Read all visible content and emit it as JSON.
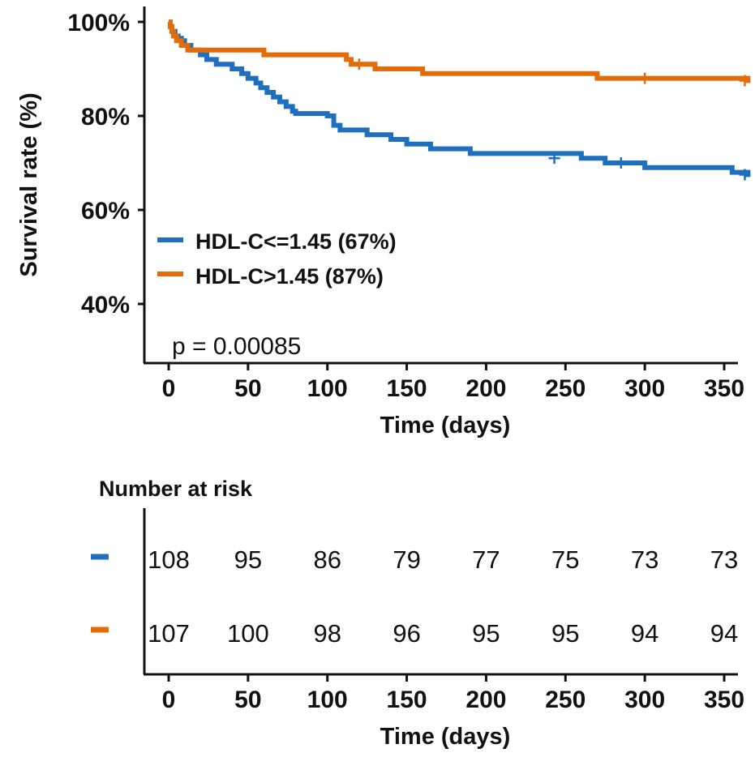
{
  "chart_data": {
    "type": "line",
    "subtype": "kaplan-meier",
    "xlabel": "Time (days)",
    "ylabel": "Survival rate (%)",
    "xlim": [
      0,
      370
    ],
    "ylim": [
      25,
      100
    ],
    "x_ticks": [
      0,
      50,
      100,
      150,
      200,
      250,
      300,
      350
    ],
    "x_tick_labels": [
      "0",
      "50",
      "100",
      "150",
      "200",
      "250",
      "300",
      "350"
    ],
    "y_ticks": [
      40,
      60,
      80,
      100
    ],
    "y_tick_labels": [
      "40%",
      "60%",
      "80%",
      "100%"
    ],
    "p_value_text": "p = 0.00085",
    "legend_position": "center-left",
    "series": [
      {
        "name": "HDL-C<=1.45 (67%)",
        "color": "#1f6fbf",
        "points": [
          [
            0,
            100
          ],
          [
            1,
            99
          ],
          [
            2,
            98
          ],
          [
            4,
            97
          ],
          [
            6,
            96.5
          ],
          [
            8,
            96
          ],
          [
            10,
            95
          ],
          [
            14,
            94
          ],
          [
            20,
            93
          ],
          [
            24,
            92
          ],
          [
            30,
            91
          ],
          [
            40,
            90
          ],
          [
            46,
            89
          ],
          [
            50,
            88
          ],
          [
            55,
            87
          ],
          [
            58,
            86
          ],
          [
            62,
            85
          ],
          [
            66,
            84
          ],
          [
            70,
            83
          ],
          [
            74,
            82
          ],
          [
            78,
            81
          ],
          [
            80,
            80.5
          ],
          [
            100,
            80
          ],
          [
            104,
            78
          ],
          [
            108,
            77
          ],
          [
            125,
            76
          ],
          [
            140,
            75
          ],
          [
            150,
            74
          ],
          [
            165,
            73
          ],
          [
            190,
            72
          ],
          [
            260,
            71
          ],
          [
            275,
            70
          ],
          [
            300,
            69
          ],
          [
            355,
            68
          ],
          [
            365,
            67
          ]
        ],
        "censor_marks": [
          [
            243,
            71
          ],
          [
            285,
            70
          ],
          [
            363,
            67.5
          ]
        ]
      },
      {
        "name": "HDL-C>1.45 (87%)",
        "color": "#e36c0a",
        "points": [
          [
            0,
            100
          ],
          [
            1,
            99
          ],
          [
            2,
            98
          ],
          [
            3,
            97
          ],
          [
            5,
            96
          ],
          [
            8,
            95
          ],
          [
            12,
            94
          ],
          [
            20,
            94
          ],
          [
            60,
            93
          ],
          [
            110,
            93
          ],
          [
            112,
            92
          ],
          [
            115,
            91
          ],
          [
            130,
            90
          ],
          [
            160,
            89
          ],
          [
            210,
            89
          ],
          [
            270,
            88
          ],
          [
            345,
            88
          ],
          [
            365,
            87
          ]
        ],
        "censor_marks": [
          [
            120,
            91
          ],
          [
            300,
            88
          ],
          [
            363,
            87.5
          ]
        ]
      }
    ],
    "risk_table": {
      "title": "Number at risk",
      "xlabel": "Time (days)",
      "times": [
        0,
        50,
        100,
        150,
        200,
        250,
        300,
        350
      ],
      "time_labels": [
        "0",
        "50",
        "100",
        "150",
        "200",
        "250",
        "300",
        "350"
      ],
      "rows": [
        {
          "series": "HDL-C<=1.45 (67%)",
          "color": "#1f6fbf",
          "counts": [
            "108",
            "95",
            "86",
            "79",
            "77",
            "75",
            "73",
            "73"
          ]
        },
        {
          "series": "HDL-C>1.45 (87%)",
          "color": "#e36c0a",
          "counts": [
            "107",
            "100",
            "98",
            "96",
            "95",
            "95",
            "94",
            "94"
          ]
        }
      ]
    }
  }
}
